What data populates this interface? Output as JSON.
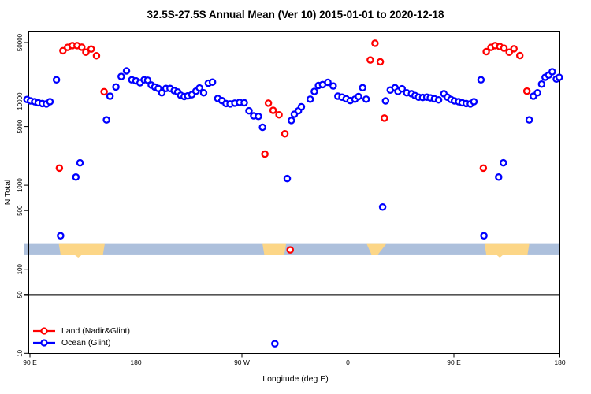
{
  "chart_data": {
    "type": "scatter",
    "title": "32.5S-27.5S Annual Mean (Ver 10)   2015-01-01 to 2020-12-18",
    "xlabel": "Longitude (deg E)",
    "ylabel": "N Total",
    "y_scale": "log10",
    "ylim": [
      10,
      50000
    ],
    "x_axis_deg_range": [
      90,
      540
    ],
    "grid": false,
    "legend_position": "bottom-left",
    "x_ticks": [
      {
        "deg": 90,
        "label": "90 E"
      },
      {
        "deg": 180,
        "label": "180"
      },
      {
        "deg": 270,
        "label": "90 W"
      },
      {
        "deg": 360,
        "label": "0"
      },
      {
        "deg": 450,
        "label": "90 E"
      },
      {
        "deg": 540,
        "label": "180"
      }
    ],
    "y_ticks": [
      {
        "value": 50000,
        "label": "50000"
      },
      {
        "value": 10000,
        "label": "10000"
      },
      {
        "value": 5000,
        "label": "5000"
      },
      {
        "value": 1000,
        "label": "1000"
      },
      {
        "value": 500,
        "label": "500"
      },
      {
        "value": 100,
        "label": "100"
      },
      {
        "value": 50,
        "label": "50"
      },
      {
        "value": 10,
        "label": "10"
      }
    ],
    "reference_line": {
      "value": 50,
      "color": "#555555"
    },
    "band": {
      "value_range": [
        150,
        200
      ],
      "fill": "#adc0dc",
      "patch_fill": "#fcd687",
      "patches": [
        {
          "top": [
            114.5,
            153.5
          ],
          "bottom": [
            116,
            152
          ]
        },
        {
          "top": [
            287.5,
            307.5
          ],
          "bottom": [
            289,
            306
          ]
        },
        {
          "top": [
            376,
            392.5
          ],
          "bottom": [
            380,
            385.5
          ]
        },
        {
          "top": [
            476,
            514
          ],
          "bottom": [
            477.5,
            512.5
          ]
        }
      ],
      "notches": [
        {
          "deg": 131,
          "half_deg": 4.5
        },
        {
          "deg": 489,
          "half_deg": 4
        }
      ]
    },
    "series": [
      {
        "id": "land",
        "name": "Land (Nadir&Glint)",
        "color": "#ff0000",
        "points": [
          [
            115,
            1600
          ],
          [
            118,
            40000
          ],
          [
            122,
            43800
          ],
          [
            126,
            46000
          ],
          [
            130,
            46000
          ],
          [
            134,
            44000
          ],
          [
            137.5,
            38400
          ],
          [
            142,
            41800
          ],
          [
            146.5,
            34800
          ],
          [
            153,
            13000
          ],
          [
            289.5,
            2350
          ],
          [
            292.5,
            9500
          ],
          [
            296.5,
            7800
          ],
          [
            301.5,
            6900
          ],
          [
            306.5,
            4100
          ],
          [
            311,
            170
          ],
          [
            379,
            31000
          ],
          [
            383,
            49000
          ],
          [
            387.5,
            29500
          ],
          [
            391,
            6300
          ],
          [
            475,
            1600
          ],
          [
            477.5,
            39000
          ],
          [
            481.5,
            43800
          ],
          [
            485,
            46000
          ],
          [
            489,
            44800
          ],
          [
            492.5,
            42900
          ],
          [
            497,
            38400
          ],
          [
            501,
            42200
          ],
          [
            506,
            35000
          ],
          [
            512,
            13200
          ]
        ]
      },
      {
        "id": "ocean",
        "name": "Ocean (Glint)",
        "color": "#0000ff",
        "points": [
          [
            87.5,
            10500
          ],
          [
            90.5,
            10100
          ],
          [
            94,
            9900
          ],
          [
            97,
            9600
          ],
          [
            100.5,
            9400
          ],
          [
            104,
            9300
          ],
          [
            107,
            9900
          ],
          [
            112.5,
            18000
          ],
          [
            116,
            250
          ],
          [
            129,
            1250
          ],
          [
            132.5,
            1850
          ],
          [
            155,
            6000
          ],
          [
            158,
            11500
          ],
          [
            163,
            14800
          ],
          [
            167.5,
            19700
          ],
          [
            172,
            23000
          ],
          [
            176.5,
            18000
          ],
          [
            180,
            17500
          ],
          [
            183.5,
            16600
          ],
          [
            187,
            18000
          ],
          [
            190,
            17800
          ],
          [
            193,
            15600
          ],
          [
            196,
            14800
          ],
          [
            199,
            14200
          ],
          [
            202,
            12600
          ],
          [
            205.5,
            14200
          ],
          [
            209,
            14200
          ],
          [
            212.5,
            13400
          ],
          [
            215.5,
            12900
          ],
          [
            218,
            11800
          ],
          [
            221,
            11400
          ],
          [
            224,
            11600
          ],
          [
            227.5,
            12000
          ],
          [
            231,
            13200
          ],
          [
            234,
            14400
          ],
          [
            237.5,
            12600
          ],
          [
            241.5,
            16400
          ],
          [
            245,
            16900
          ],
          [
            249.5,
            10800
          ],
          [
            253,
            10200
          ],
          [
            256.5,
            9400
          ],
          [
            260,
            9300
          ],
          [
            264,
            9500
          ],
          [
            268,
            9700
          ],
          [
            272,
            9600
          ],
          [
            276,
            7700
          ],
          [
            280,
            6700
          ],
          [
            284,
            6600
          ],
          [
            287.5,
            4900
          ],
          [
            298,
            13
          ],
          [
            308.5,
            1200
          ],
          [
            312,
            5900
          ],
          [
            314.5,
            7000
          ],
          [
            318,
            7700
          ],
          [
            320.5,
            8600
          ],
          [
            328,
            10600
          ],
          [
            331.5,
            13100
          ],
          [
            335,
            15400
          ],
          [
            338.5,
            15800
          ],
          [
            343,
            16800
          ],
          [
            347.5,
            15200
          ],
          [
            351.5,
            11500
          ],
          [
            355,
            11200
          ],
          [
            358.5,
            10700
          ],
          [
            362,
            10200
          ],
          [
            366,
            10600
          ],
          [
            369,
            11400
          ],
          [
            372.5,
            14500
          ],
          [
            375.5,
            10600
          ],
          [
            389.5,
            550
          ],
          [
            392,
            10100
          ],
          [
            396,
            13600
          ],
          [
            400,
            14500
          ],
          [
            402.5,
            13100
          ],
          [
            406,
            14100
          ],
          [
            410,
            12600
          ],
          [
            414,
            12300
          ],
          [
            417,
            11700
          ],
          [
            420,
            11200
          ],
          [
            423.5,
            11100
          ],
          [
            427,
            11200
          ],
          [
            430,
            11000
          ],
          [
            433.5,
            10700
          ],
          [
            437,
            10400
          ],
          [
            441.5,
            12300
          ],
          [
            444.5,
            11200
          ],
          [
            447.5,
            10500
          ],
          [
            450.5,
            10100
          ],
          [
            454,
            9900
          ],
          [
            457,
            9600
          ],
          [
            460.5,
            9400
          ],
          [
            464,
            9300
          ],
          [
            467,
            9900
          ],
          [
            473,
            18000
          ],
          [
            475.5,
            250
          ],
          [
            488,
            1250
          ],
          [
            492,
            1850
          ],
          [
            514,
            6000
          ],
          [
            517.5,
            11500
          ],
          [
            521,
            12600
          ],
          [
            524.5,
            16000
          ],
          [
            527.5,
            19300
          ],
          [
            530.5,
            20500
          ],
          [
            533.5,
            22500
          ],
          [
            537,
            18400
          ],
          [
            539.5,
            19300
          ]
        ]
      }
    ]
  }
}
